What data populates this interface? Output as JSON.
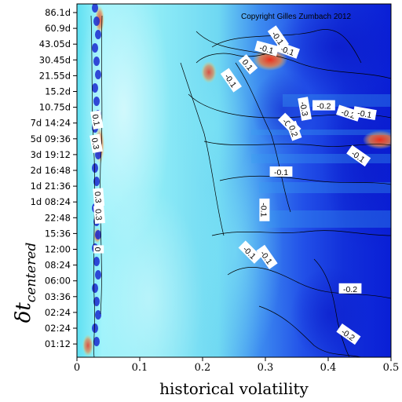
{
  "chart_data": {
    "type": "heatmap",
    "title": "",
    "xlabel": "historical volatility",
    "ylabel_main": "δt",
    "ylabel_sub": "centered",
    "copyright": "Copyright Gilles Zumbach 2012",
    "xlim": [
      0,
      0.5
    ],
    "x_ticks": [
      "0",
      "0.1",
      "0.2",
      "0.3",
      "0.4",
      "0.5"
    ],
    "x_tick_values": [
      0,
      0.1,
      0.2,
      0.3,
      0.4,
      0.5
    ],
    "y_ticks": [
      "86.1d",
      "60.9d",
      "43.05d",
      "30.45d",
      "21.55d",
      "15.2d",
      "10.75d",
      "7d 14:24",
      "5d 09:36",
      "3d 19:12",
      "2d 16:48",
      "1d 21:36",
      "1d 08:24",
      "22:48",
      "15:36",
      "12:00",
      "08:24",
      "06:00",
      "03:36",
      "02:24",
      "02:24",
      "01:12"
    ],
    "colormap": [
      "#0a1fd6",
      "#2f7ff0",
      "#5fd8ee",
      "#9ff3fb",
      "#ffffff",
      "#f4dc6a",
      "#ee2d1a"
    ],
    "contour_labels": [
      {
        "text": "-0.1",
        "x": 0.335,
        "y": 2.4,
        "angle": 20
      },
      {
        "text": "0.1",
        "x": 0.272,
        "y": 3.3,
        "angle": 50
      },
      {
        "text": "-0.1",
        "x": 0.302,
        "y": 2.3,
        "angle": 15
      },
      {
        "text": "-0.1",
        "x": 0.32,
        "y": 1.6,
        "angle": 55
      },
      {
        "text": "-0.1",
        "x": 0.245,
        "y": 4.3,
        "angle": 55
      },
      {
        "text": "-0.2",
        "x": 0.393,
        "y": 5.9,
        "angle": 0
      },
      {
        "text": "-0.2",
        "x": 0.432,
        "y": 6.4,
        "angle": 18
      },
      {
        "text": "-0.1",
        "x": 0.458,
        "y": 6.4,
        "angle": 10
      },
      {
        "text": "-0.3",
        "x": 0.362,
        "y": 6.1,
        "angle": 80
      },
      {
        "text": "-0.1",
        "x": 0.338,
        "y": 7.1,
        "angle": 45
      },
      {
        "text": "0.2",
        "x": 0.345,
        "y": 7.5,
        "angle": 70
      },
      {
        "text": "-0.1",
        "x": 0.448,
        "y": 9.1,
        "angle": 35
      },
      {
        "text": "-0.1",
        "x": 0.325,
        "y": 10.1,
        "angle": 0
      },
      {
        "text": "-0.1",
        "x": 0.298,
        "y": 12.5,
        "angle": 90
      },
      {
        "text": "-0.1",
        "x": 0.275,
        "y": 15.2,
        "angle": 45
      },
      {
        "text": "-0.1",
        "x": 0.302,
        "y": 15.5,
        "angle": 55
      },
      {
        "text": "-0.2",
        "x": 0.435,
        "y": 17.5,
        "angle": 0
      },
      {
        "text": "-0.2",
        "x": 0.432,
        "y": 20.4,
        "angle": 35
      },
      {
        "text": "0.1",
        "x": 0.031,
        "y": 6.8,
        "angle": 80
      },
      {
        "text": "0.3",
        "x": 0.03,
        "y": 8.3,
        "angle": 80
      },
      {
        "text": "0.3",
        "x": 0.035,
        "y": 12.8,
        "angle": 85
      },
      {
        "text": "0.3",
        "x": 0.034,
        "y": 11.7,
        "angle": 85
      },
      {
        "text": "0",
        "x": 0.034,
        "y": 15.0,
        "angle": 90
      }
    ]
  }
}
